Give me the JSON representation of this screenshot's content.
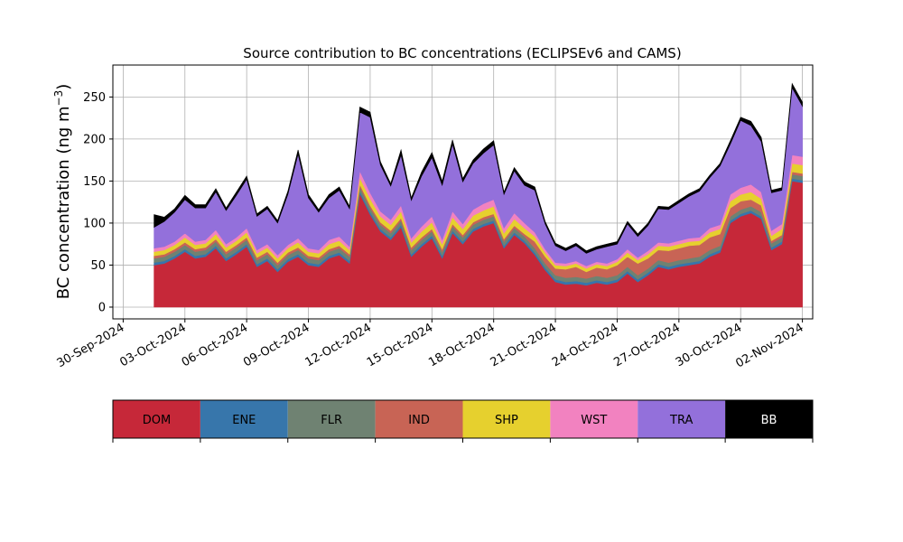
{
  "chart_data": {
    "type": "area",
    "title": "Source contribution to BC concentrations (ECLIPSEv6 and CAMS)",
    "ylabel": "BC concentration (ng m",
    "ylabel_sup": "−3",
    "ylabel_close": ")",
    "xlim": [
      "2024-09-29T12:00",
      "2024-11-02T12:00"
    ],
    "ylim": [
      -14,
      288
    ],
    "yticks": [
      0,
      50,
      100,
      150,
      200,
      250
    ],
    "xticks": [
      "2024-09-30",
      "2024-10-03",
      "2024-10-06",
      "2024-10-09",
      "2024-10-12",
      "2024-10-15",
      "2024-10-18",
      "2024-10-21",
      "2024-10-24",
      "2024-10-27",
      "2024-10-30",
      "2024-11-02"
    ],
    "xtick_labels": [
      "30-Sep-2024",
      "03-Oct-2024",
      "06-Oct-2024",
      "09-Oct-2024",
      "12-Oct-2024",
      "15-Oct-2024",
      "18-Oct-2024",
      "21-Oct-2024",
      "24-Oct-2024",
      "27-Oct-2024",
      "30-Oct-2024",
      "02-Nov-2024"
    ],
    "grid": true,
    "stacked": true,
    "x": [
      "2024-10-01T12:00",
      "2024-10-02T00:00",
      "2024-10-02T12:00",
      "2024-10-03T00:00",
      "2024-10-03T12:00",
      "2024-10-04T00:00",
      "2024-10-04T12:00",
      "2024-10-05T00:00",
      "2024-10-05T12:00",
      "2024-10-06T00:00",
      "2024-10-06T12:00",
      "2024-10-07T00:00",
      "2024-10-07T12:00",
      "2024-10-08T00:00",
      "2024-10-08T12:00",
      "2024-10-09T00:00",
      "2024-10-09T12:00",
      "2024-10-10T00:00",
      "2024-10-10T12:00",
      "2024-10-11T00:00",
      "2024-10-11T12:00",
      "2024-10-12T00:00",
      "2024-10-12T12:00",
      "2024-10-13T00:00",
      "2024-10-13T12:00",
      "2024-10-14T00:00",
      "2024-10-14T12:00",
      "2024-10-15T00:00",
      "2024-10-15T12:00",
      "2024-10-16T00:00",
      "2024-10-16T12:00",
      "2024-10-17T00:00",
      "2024-10-17T12:00",
      "2024-10-18T00:00",
      "2024-10-18T12:00",
      "2024-10-19T00:00",
      "2024-10-19T12:00",
      "2024-10-20T00:00",
      "2024-10-20T12:00",
      "2024-10-21T00:00",
      "2024-10-21T12:00",
      "2024-10-22T00:00",
      "2024-10-22T12:00",
      "2024-10-23T00:00",
      "2024-10-23T12:00",
      "2024-10-24T00:00",
      "2024-10-24T12:00",
      "2024-10-25T00:00",
      "2024-10-25T12:00",
      "2024-10-26T00:00",
      "2024-10-26T12:00",
      "2024-10-27T00:00",
      "2024-10-27T12:00",
      "2024-10-28T00:00",
      "2024-10-28T12:00",
      "2024-10-29T00:00",
      "2024-10-29T12:00",
      "2024-10-30T00:00",
      "2024-10-30T12:00",
      "2024-10-31T00:00",
      "2024-10-31T12:00",
      "2024-11-01T00:00",
      "2024-11-01T12:00",
      "2024-11-02T00:00"
    ],
    "series": [
      {
        "name": "DOM",
        "color": "#c62839",
        "values": [
          50,
          52,
          58,
          66,
          58,
          60,
          70,
          55,
          63,
          72,
          48,
          55,
          42,
          54,
          60,
          50,
          48,
          58,
          62,
          52,
          135,
          110,
          90,
          80,
          95,
          60,
          72,
          82,
          58,
          88,
          75,
          90,
          96,
          100,
          70,
          86,
          76,
          62,
          44,
          30,
          27,
          28,
          26,
          29,
          27,
          30,
          40,
          30,
          38,
          48,
          45,
          48,
          50,
          52,
          60,
          65,
          100,
          108,
          112,
          105,
          68,
          75,
          150,
          148
        ]
      },
      {
        "name": "ENE",
        "color": "#3776ab",
        "values": [
          3,
          3,
          3,
          3,
          3,
          3,
          3,
          3,
          3,
          3,
          3,
          3,
          3,
          3,
          3,
          3,
          3,
          3,
          3,
          3,
          3,
          3,
          3,
          3,
          3,
          3,
          3,
          3,
          3,
          3,
          3,
          3,
          3,
          3,
          3,
          3,
          3,
          3,
          3,
          3,
          3,
          3,
          3,
          3,
          3,
          3,
          3,
          3,
          3,
          3,
          3,
          3,
          3,
          3,
          3,
          3,
          3,
          3,
          3,
          3,
          3,
          3,
          3,
          3
        ]
      },
      {
        "name": "FLR",
        "color": "#6f8272",
        "values": [
          5,
          5,
          5,
          5,
          5,
          5,
          5,
          5,
          5,
          5,
          5,
          5,
          5,
          5,
          5,
          5,
          5,
          5,
          5,
          5,
          5,
          5,
          5,
          5,
          5,
          5,
          5,
          5,
          5,
          5,
          5,
          5,
          5,
          5,
          5,
          5,
          5,
          5,
          5,
          5,
          5,
          5,
          5,
          5,
          5,
          5,
          5,
          5,
          5,
          5,
          5,
          5,
          5,
          5,
          5,
          5,
          5,
          5,
          5,
          5,
          5,
          5,
          5,
          5
        ]
      },
      {
        "name": "IND",
        "color": "#c86455",
        "values": [
          3,
          3,
          3,
          3,
          3,
          3,
          3,
          3,
          3,
          3,
          3,
          3,
          3,
          3,
          3,
          3,
          3,
          3,
          3,
          3,
          3,
          3,
          3,
          3,
          3,
          3,
          3,
          3,
          3,
          3,
          3,
          3,
          3,
          3,
          3,
          3,
          3,
          8,
          8,
          8,
          10,
          12,
          8,
          10,
          10,
          12,
          12,
          14,
          12,
          12,
          14,
          14,
          15,
          14,
          15,
          14,
          10,
          10,
          8,
          8,
          3,
          3,
          3,
          3
        ]
      },
      {
        "name": "SHP",
        "color": "#e6d02e",
        "values": [
          5,
          5,
          5,
          6,
          5,
          5,
          6,
          5,
          5,
          6,
          5,
          5,
          5,
          5,
          6,
          5,
          5,
          6,
          6,
          5,
          8,
          8,
          7,
          7,
          8,
          6,
          7,
          8,
          6,
          8,
          7,
          8,
          8,
          9,
          7,
          8,
          7,
          6,
          5,
          4,
          4,
          4,
          4,
          4,
          4,
          4,
          5,
          4,
          5,
          5,
          5,
          5,
          5,
          5,
          6,
          6,
          8,
          8,
          9,
          8,
          6,
          7,
          10,
          10
        ]
      },
      {
        "name": "WST",
        "color": "#f282c0",
        "values": [
          4,
          4,
          4,
          5,
          4,
          4,
          5,
          4,
          4,
          5,
          4,
          4,
          4,
          4,
          5,
          4,
          4,
          5,
          5,
          4,
          8,
          7,
          6,
          6,
          7,
          5,
          6,
          7,
          5,
          7,
          6,
          7,
          8,
          8,
          6,
          7,
          6,
          5,
          4,
          3,
          3,
          3,
          3,
          3,
          3,
          3,
          4,
          3,
          4,
          4,
          4,
          4,
          4,
          4,
          5,
          5,
          8,
          8,
          9,
          8,
          6,
          6,
          10,
          10
        ]
      },
      {
        "name": "TRA",
        "color": "#9370db",
        "values": [
          25,
          30,
          35,
          40,
          40,
          38,
          45,
          40,
          50,
          58,
          40,
          42,
          38,
          60,
          100,
          60,
          45,
          50,
          55,
          45,
          70,
          90,
          55,
          40,
          60,
          45,
          60,
          70,
          65,
          80,
          50,
          55,
          60,
          65,
          40,
          50,
          45,
          50,
          30,
          20,
          15,
          18,
          15,
          15,
          20,
          18,
          30,
          25,
          30,
          40,
          40,
          45,
          50,
          55,
          60,
          70,
          60,
          80,
          70,
          60,
          45,
          40,
          80,
          60
        ]
      },
      {
        "name": "BB",
        "color": "#000000",
        "values": [
          15,
          5,
          4,
          5,
          4,
          4,
          4,
          3,
          4,
          4,
          3,
          3,
          3,
          4,
          5,
          4,
          3,
          4,
          4,
          3,
          6,
          6,
          4,
          3,
          6,
          3,
          5,
          6,
          5,
          5,
          4,
          4,
          5,
          5,
          3,
          4,
          4,
          4,
          3,
          3,
          3,
          3,
          3,
          3,
          3,
          3,
          3,
          3,
          3,
          3,
          3,
          3,
          3,
          3,
          3,
          3,
          4,
          4,
          5,
          5,
          3,
          3,
          5,
          5
        ]
      }
    ],
    "legend_placement": "bottom-colorbar"
  }
}
